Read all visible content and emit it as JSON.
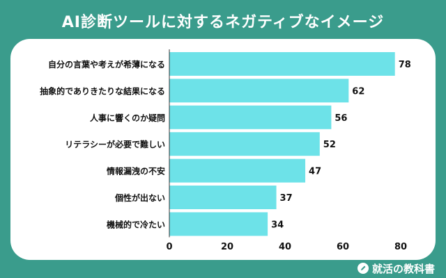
{
  "header": {
    "title": "AI診断ツールに対するネガティブなイメージ"
  },
  "footer": {
    "brand": "就活の教科書",
    "brand_icon": "pencil-icon"
  },
  "colors": {
    "background": "#3a9c8c",
    "bar": "#6de2e8",
    "text": "#111111",
    "card": "#ffffff"
  },
  "chart_data": {
    "type": "bar",
    "orientation": "horizontal",
    "categories": [
      "自分の言葉や考えが希薄になる",
      "抽象的でありきたりな結果になる",
      "人事に響くのか疑問",
      "リテラシーが必要で難しい",
      "情報漏洩の不安",
      "個性が出ない",
      "機械的で冷たい"
    ],
    "values": [
      78,
      62,
      56,
      52,
      47,
      37,
      34
    ],
    "xlim": [
      0,
      80
    ],
    "xticks": [
      "0",
      "20",
      "40",
      "60",
      "80"
    ],
    "data_labels": true,
    "grid": false
  }
}
